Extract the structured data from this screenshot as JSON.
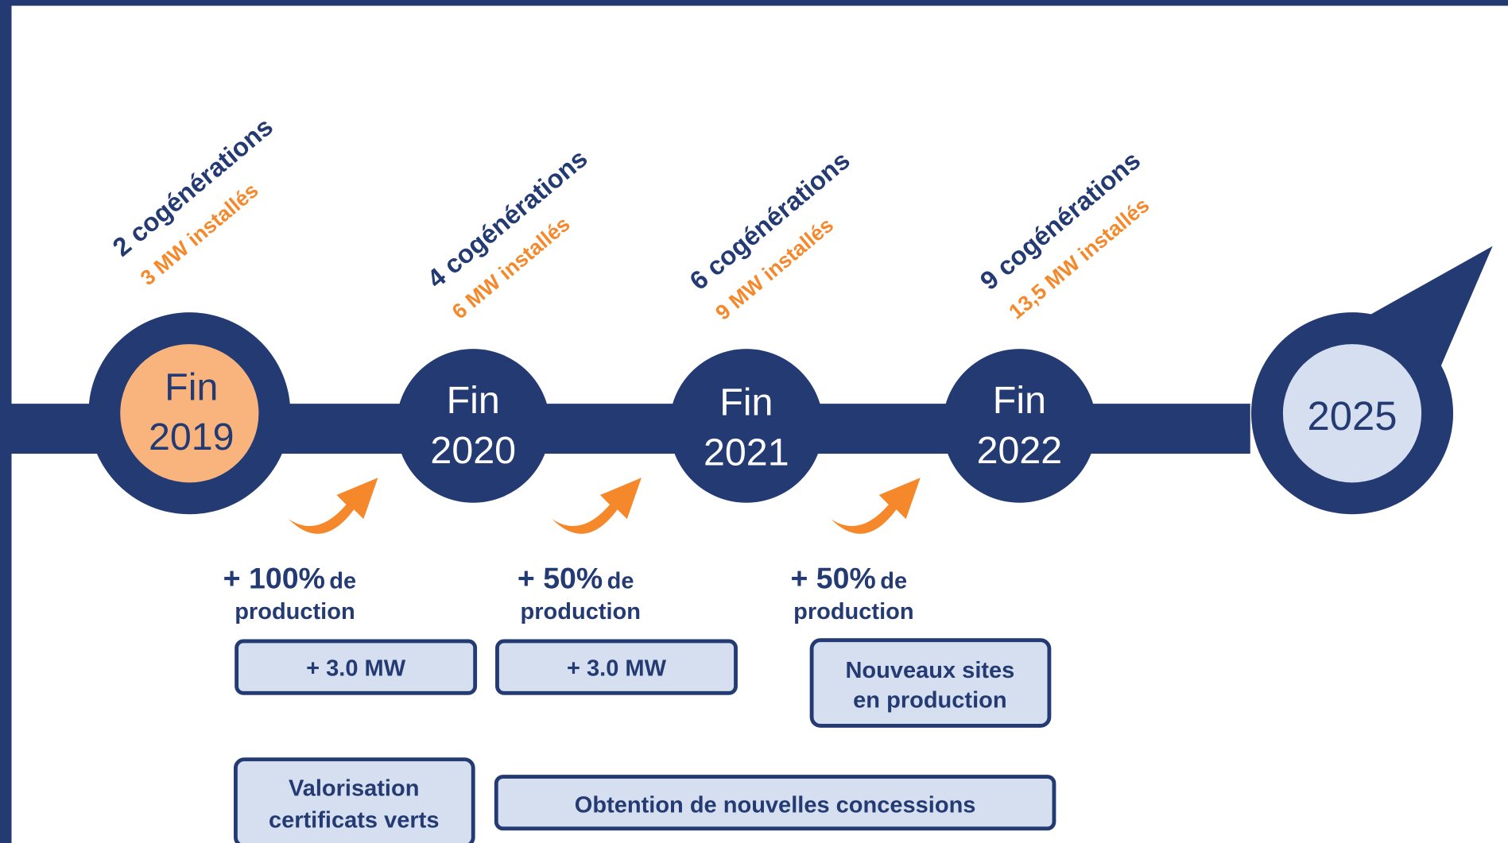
{
  "milestones": [
    {
      "fin": "Fin",
      "year": "2019",
      "count": "2 cogénérations",
      "capacity": "3 MW installés"
    },
    {
      "fin": "Fin",
      "year": "2020",
      "count": "4 cogénérations",
      "capacity": "6 MW installés"
    },
    {
      "fin": "Fin",
      "year": "2021",
      "count": "6 cogénérations",
      "capacity": "9 MW installés"
    },
    {
      "fin": "Fin",
      "year": "2022",
      "count": "9 cogénérations",
      "capacity": "13,5 MW installés"
    }
  ],
  "final": "2025",
  "growth": [
    {
      "percent": "+ 100%",
      "suffix": "de",
      "line2": "production"
    },
    {
      "percent": "+ 50%",
      "suffix": "de",
      "line2": "production"
    },
    {
      "percent": "+ 50%",
      "suffix": "de",
      "line2": "production"
    }
  ],
  "boxes": [
    {
      "lines": [
        "+ 3.0 MW"
      ]
    },
    {
      "lines": [
        "+ 3.0 MW"
      ]
    },
    {
      "lines": [
        "Nouveaux sites",
        "en production"
      ]
    },
    {
      "lines": [
        "Valorisation",
        "certificats verts"
      ]
    },
    {
      "lines": [
        "Obtention de nouvelles concessions"
      ]
    }
  ]
}
